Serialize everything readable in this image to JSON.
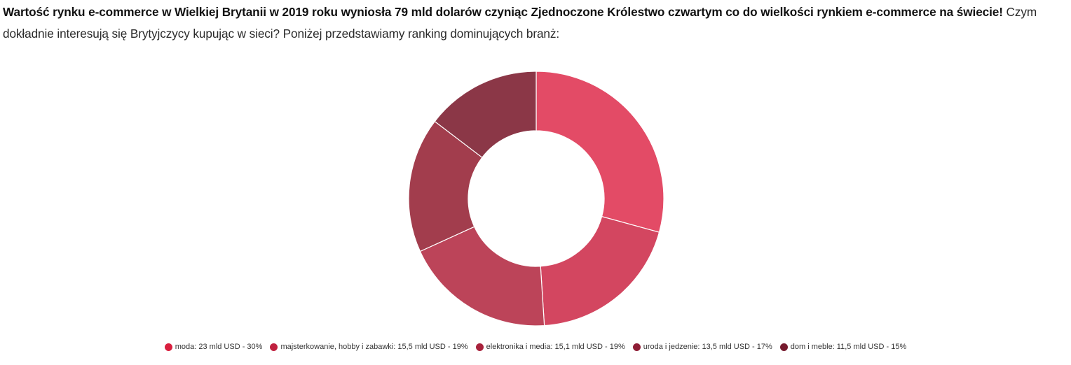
{
  "intro": {
    "bold_text": "Wartość rynku e-commerce w Wielkiej Brytanii w 2019 roku wyniosła 79 mld dolarów czyniąc Zjednoczone Królestwo czwartym co do wielkości rynkiem e-commerce na świecie!",
    "normal_text": " Czym dokładnie interesują się Brytyjczycy kupując w sieci? Poniżej przedstawiamy ranking dominujących branż:"
  },
  "chart_data": {
    "type": "pie",
    "variant": "donut",
    "title": "",
    "unit": "mld USD",
    "slices": [
      {
        "label": "moda: 23 mld USD - 30%",
        "category": "moda",
        "value": 23,
        "percent": 30,
        "color": "#e34b66",
        "legend_color": "#d91f3e"
      },
      {
        "label": "majsterkowanie, hobby i zabawki: 15,5 mld USD - 19%",
        "category": "majsterkowanie, hobby i zabawki",
        "value": 15.5,
        "percent": 19,
        "color": "#d34660",
        "legend_color": "#c0213f"
      },
      {
        "label": "elektronika i media: 15,1 mld USD - 19%",
        "category": "elektronika i media",
        "value": 15.1,
        "percent": 19,
        "color": "#bc4459",
        "legend_color": "#a8223c"
      },
      {
        "label": "uroda i jedzenie: 13,5 mld USD - 17%",
        "category": "uroda i jedzenie",
        "value": 13.5,
        "percent": 17,
        "color": "#a23d4d",
        "legend_color": "#8e1d35"
      },
      {
        "label": "dom i meble: 11,5 mld USD - 15%",
        "category": "dom i meble",
        "value": 11.5,
        "percent": 15,
        "color": "#8b3747",
        "legend_color": "#761a2e"
      }
    ],
    "legend_position": "bottom"
  }
}
